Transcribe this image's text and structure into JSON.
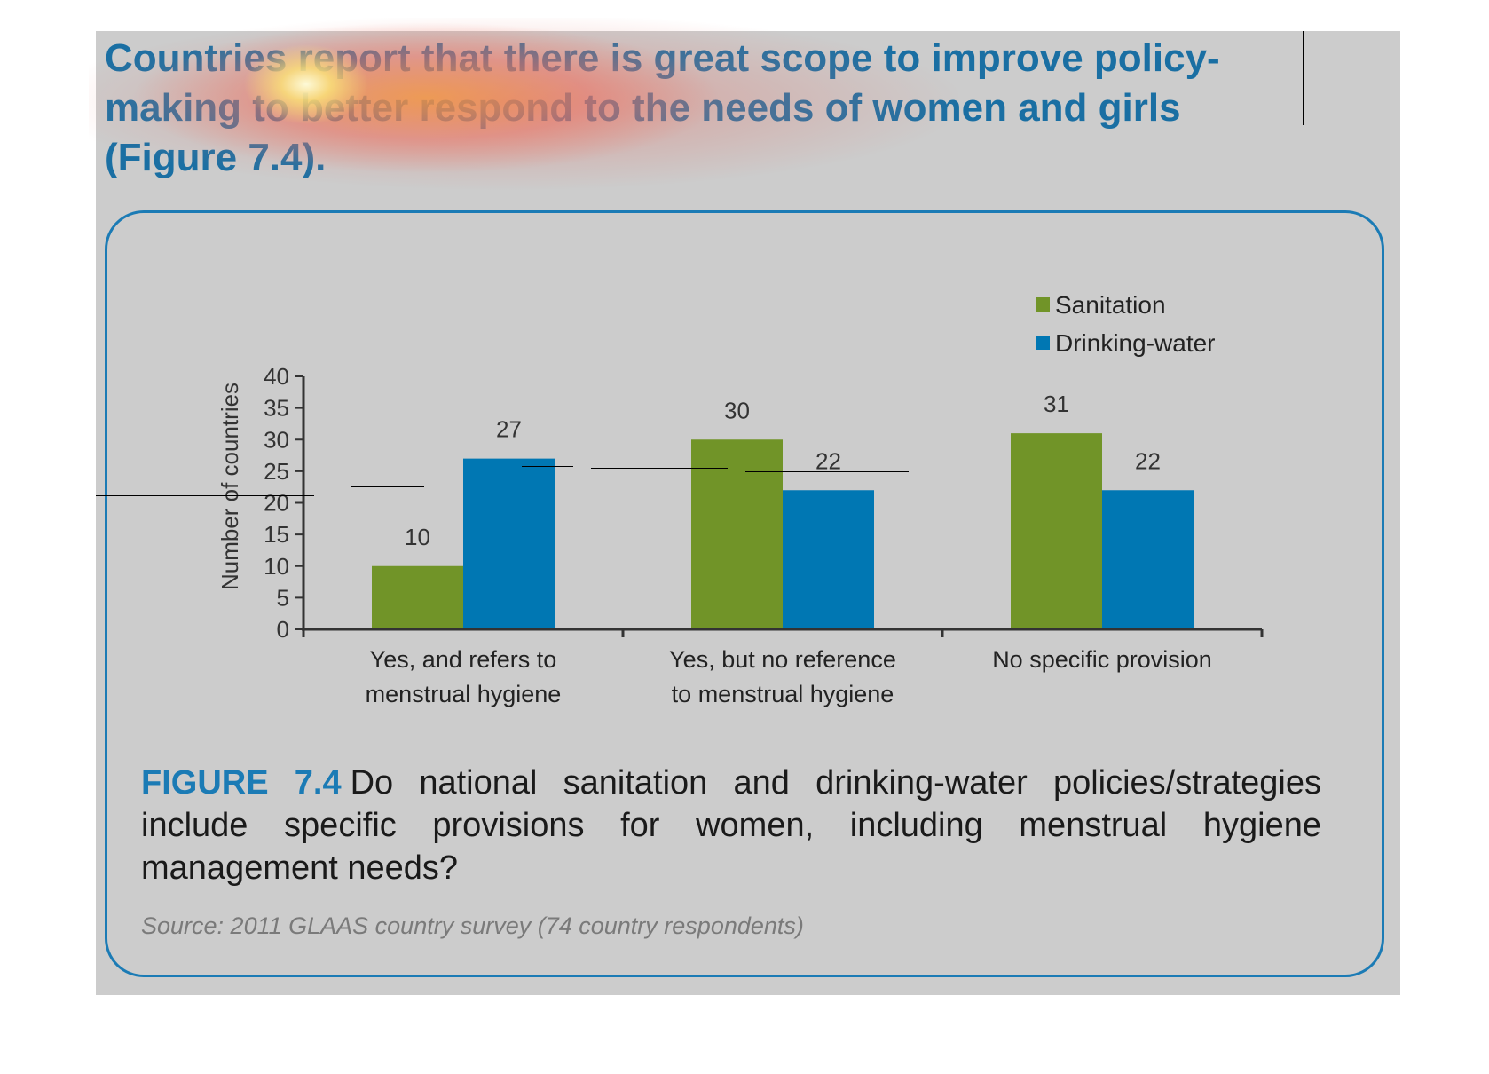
{
  "heading": "Countries report that there is great scope to improve policy-making to better respond to the needs of women and girls (Figure 7.4).",
  "caption": {
    "label": "FIGURE 7.4",
    "text": "Do national sanitation and drinking-water policies/strategies include specific provisions for women, including menstrual hygiene management needs?"
  },
  "source": "Source: 2011 GLAAS country survey (74 country respondents)",
  "colors": {
    "sanitation": "#719428",
    "drinking_water": "#0077b3",
    "accent": "#1b7bb5"
  },
  "chart_data": {
    "type": "bar",
    "title": "",
    "xlabel": "",
    "ylabel": "Number of countries",
    "ylim": [
      0,
      40
    ],
    "yticks": [
      0,
      5,
      10,
      15,
      20,
      25,
      30,
      35,
      40
    ],
    "categories": [
      [
        "Yes, and refers to",
        "menstrual hygiene"
      ],
      [
        "Yes, but no reference",
        "to menstrual hygiene"
      ],
      [
        "No specific provision"
      ]
    ],
    "series": [
      {
        "name": "Sanitation",
        "values": [
          10,
          30,
          31
        ]
      },
      {
        "name": "Drinking-water",
        "values": [
          27,
          22,
          22
        ]
      }
    ],
    "legend_position": "top-right",
    "grid": false
  }
}
